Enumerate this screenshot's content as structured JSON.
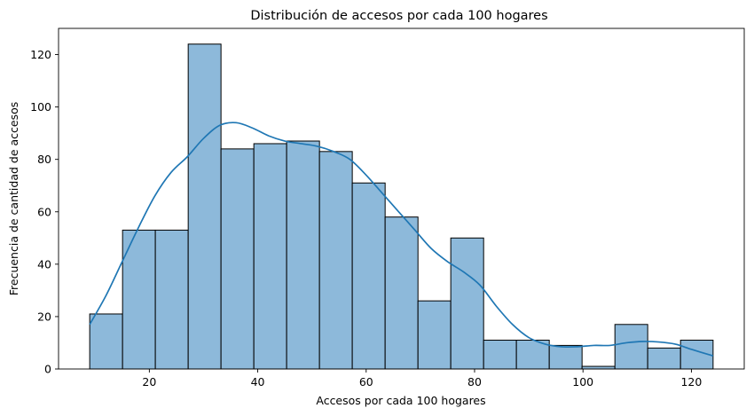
{
  "chart_data": {
    "type": "bar",
    "title": "Distribución de accesos por cada 100 hogares",
    "xlabel": "Accesos por cada 100 hogares",
    "ylabel": "Frecuencia de cantidad de accesos",
    "xlim": [
      3.25,
      129.75
    ],
    "ylim": [
      0,
      130
    ],
    "xticks": [
      20,
      40,
      60,
      80,
      100,
      120
    ],
    "yticks": [
      0,
      20,
      40,
      60,
      80,
      100,
      120
    ],
    "grid": false,
    "legend": "none",
    "colors": {
      "bar_fill": "#8db9da",
      "bar_edge": "#000000",
      "kde": "#1f77b4"
    },
    "bins": [
      {
        "x0": 9.0,
        "x1": 15.06,
        "count": 21
      },
      {
        "x0": 15.06,
        "x1": 21.11,
        "count": 53
      },
      {
        "x0": 21.11,
        "x1": 27.17,
        "count": 53
      },
      {
        "x0": 27.17,
        "x1": 33.22,
        "count": 124
      },
      {
        "x0": 33.22,
        "x1": 39.28,
        "count": 84
      },
      {
        "x0": 39.28,
        "x1": 45.33,
        "count": 86
      },
      {
        "x0": 45.33,
        "x1": 51.39,
        "count": 87
      },
      {
        "x0": 51.39,
        "x1": 57.44,
        "count": 83
      },
      {
        "x0": 57.44,
        "x1": 63.5,
        "count": 71
      },
      {
        "x0": 63.5,
        "x1": 69.56,
        "count": 58
      },
      {
        "x0": 69.56,
        "x1": 75.61,
        "count": 26
      },
      {
        "x0": 75.61,
        "x1": 81.67,
        "count": 50
      },
      {
        "x0": 81.67,
        "x1": 87.72,
        "count": 11
      },
      {
        "x0": 87.72,
        "x1": 93.78,
        "count": 11
      },
      {
        "x0": 93.78,
        "x1": 99.83,
        "count": 9
      },
      {
        "x0": 99.83,
        "x1": 105.89,
        "count": 1
      },
      {
        "x0": 105.89,
        "x1": 111.94,
        "count": 17
      },
      {
        "x0": 111.94,
        "x1": 118.0,
        "count": 8
      },
      {
        "x0": 118.0,
        "x1": 124.0,
        "count": 11
      }
    ],
    "kde": {
      "x": [
        9,
        12,
        15,
        18,
        21,
        24,
        27,
        30,
        33,
        36,
        39,
        42,
        45,
        48,
        51,
        54,
        57,
        60,
        63,
        66,
        69,
        72,
        75,
        78,
        81,
        84,
        87,
        90,
        93,
        96,
        99,
        102,
        105,
        108,
        111,
        114,
        117,
        120,
        124
      ],
      "y": [
        17,
        28,
        41,
        54,
        66,
        75,
        81,
        88,
        93,
        94,
        92,
        89,
        87,
        86,
        85,
        83,
        80,
        74,
        67,
        60,
        53,
        46,
        41,
        37,
        32,
        24,
        17,
        12,
        9.5,
        8.5,
        8.5,
        9,
        9,
        10,
        10.5,
        10.3,
        9.5,
        7.5,
        5
      ]
    }
  }
}
